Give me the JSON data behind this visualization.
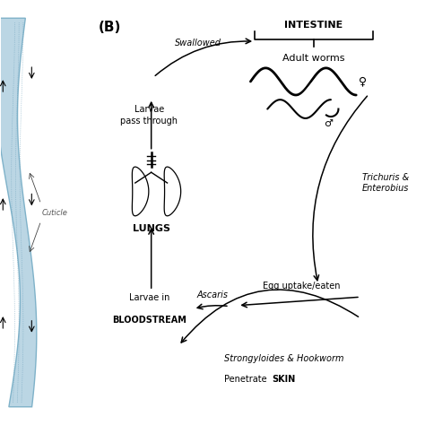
{
  "bg_color": "#ffffff",
  "panel_b_label": "(B)",
  "title_intestine": "INTESTINE",
  "label_adult_worms": "Adult worms",
  "label_lungs": "LUNGS",
  "label_larvae_pass": "Larvae\npass through",
  "label_larvae_in": "Larvae in",
  "label_bloodstream": "BLOODSTREAM",
  "label_swallowed": "Swallowed",
  "label_trichuris": "Trichuris &\nEnterobius",
  "label_ascaris": "Ascaris",
  "label_egg_uptake": "Egg uptake/eaten",
  "label_strongyloides": "Strongyloides & Hookworm",
  "label_penetrate_pre": "Penetrate ",
  "label_penetrate_bold": "SKIN",
  "label_cuticle": "Cuticle",
  "nematode_color": "#b8d4e3",
  "nematode_edge": "#7aafc7",
  "text_color": "#000000"
}
